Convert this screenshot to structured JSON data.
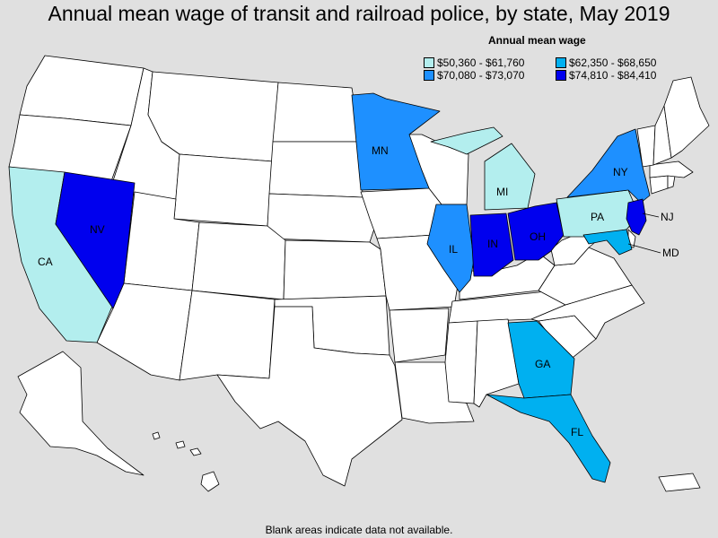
{
  "title": "Annual mean wage of transit and railroad police, by state, May 2019",
  "legend": {
    "title": "Annual mean wage",
    "bins": [
      {
        "label": "$50,360 - $61,760",
        "color": "#b3eeee"
      },
      {
        "label": "$62,350 - $68,650",
        "color": "#00b0f0"
      },
      {
        "label": "$70,080 - $73,070",
        "color": "#1e90ff"
      },
      {
        "label": "$74,810 - $84,410",
        "color": "#0000ee"
      }
    ]
  },
  "no_data_color": "#ffffff",
  "states": {
    "CA": {
      "label": "CA",
      "bin": 0
    },
    "MI": {
      "label": "MI",
      "bin": 0
    },
    "PA": {
      "label": "PA",
      "bin": 0
    },
    "GA": {
      "label": "GA",
      "bin": 1
    },
    "FL": {
      "label": "FL",
      "bin": 1
    },
    "MD": {
      "label": "MD",
      "bin": 1
    },
    "MN": {
      "label": "MN",
      "bin": 2
    },
    "IL": {
      "label": "IL",
      "bin": 2
    },
    "NY": {
      "label": "NY",
      "bin": 2
    },
    "NV": {
      "label": "NV",
      "bin": 3
    },
    "IN": {
      "label": "IN",
      "bin": 3
    },
    "OH": {
      "label": "OH",
      "bin": 3
    },
    "NJ": {
      "label": "NJ",
      "bin": 3
    }
  },
  "footnote": "Blank areas indicate data not available."
}
